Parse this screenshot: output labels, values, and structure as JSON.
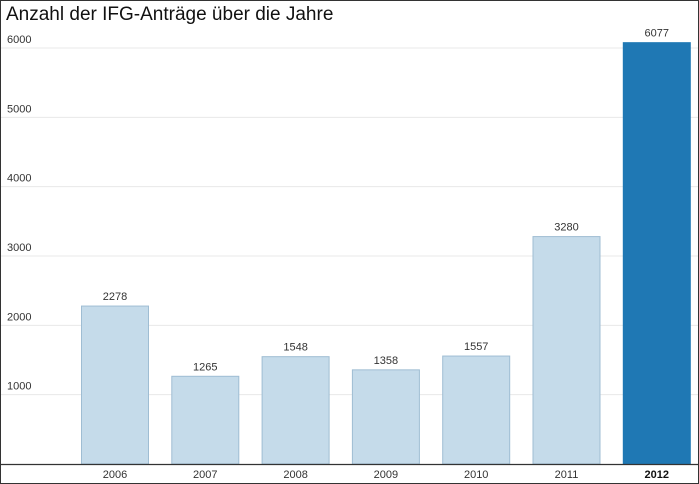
{
  "chart_data": {
    "type": "bar",
    "title": "Anzahl der IFG-Anträge über die Jahre",
    "categories": [
      "2006",
      "2007",
      "2008",
      "2009",
      "2010",
      "2011",
      "2012"
    ],
    "values": [
      2278,
      1265,
      1548,
      1358,
      1557,
      3280,
      6077
    ],
    "highlight_category": "2012",
    "ylim": [
      0,
      6000
    ],
    "yticks": [
      1000,
      2000,
      3000,
      4000,
      5000,
      6000
    ],
    "xlabel": "",
    "ylabel": "",
    "grid": true,
    "colors": {
      "bar": "#c5dbea",
      "bar_border": "#9fbdd3",
      "highlight": "#1f78b4",
      "gridline": "#e8e8e8",
      "axis": "#333333"
    }
  }
}
